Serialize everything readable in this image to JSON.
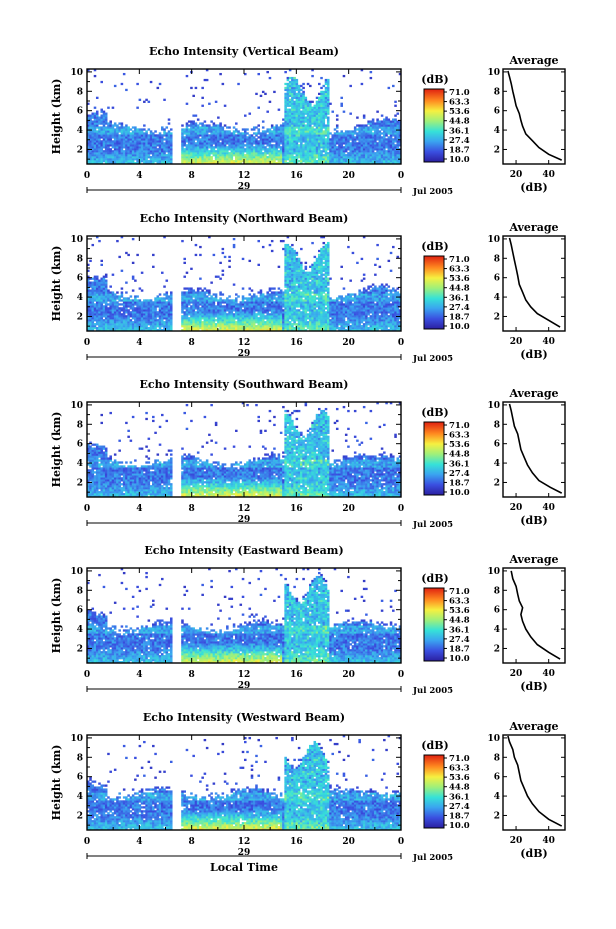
{
  "chart_data": [
    {
      "type": "heatmap",
      "title": "Echo Intensity (Vertical Beam)",
      "ylabel": "Height (km)",
      "ylim": [
        0.5,
        10.3
      ],
      "yticks": [
        "2",
        "4",
        "6",
        "8",
        "10"
      ],
      "xticks": [
        "0",
        "4",
        "8",
        "12",
        "16",
        "20",
        "0"
      ],
      "day_label": "29",
      "date_label": "Jul 2005",
      "xlabel": "",
      "colorbar": {
        "label": "(dB)",
        "ticks": [
          "71.0",
          "63.3",
          "53.6",
          "44.8",
          "36.1",
          "27.4",
          "18.7",
          "10.0"
        ]
      },
      "average": {
        "title": "Average",
        "xlabel": "(dB)",
        "xticks": [
          "20",
          "40"
        ],
        "yticks": [
          "2",
          "4",
          "6",
          "8",
          "10"
        ],
        "xlim": [
          12,
          50
        ],
        "ylim": [
          0.5,
          10.3
        ],
        "profile": [
          [
            48,
            0.9
          ],
          [
            40,
            1.5
          ],
          [
            34,
            2.2
          ],
          [
            30,
            2.9
          ],
          [
            26,
            3.6
          ],
          [
            24,
            4.4
          ],
          [
            23,
            5.0
          ],
          [
            22,
            5.7
          ],
          [
            20,
            6.5
          ],
          [
            19,
            7.3
          ],
          [
            18,
            8.0
          ],
          [
            17,
            8.8
          ],
          [
            16,
            9.5
          ],
          [
            15,
            10.1
          ]
        ]
      }
    },
    {
      "type": "heatmap",
      "title": "Echo Intensity (Northward Beam)",
      "ylabel": "Height (km)",
      "ylim": [
        0.5,
        10.3
      ],
      "yticks": [
        "2",
        "4",
        "6",
        "8",
        "10"
      ],
      "xticks": [
        "0",
        "4",
        "8",
        "12",
        "16",
        "20",
        "0"
      ],
      "day_label": "29",
      "date_label": "Jul 2005",
      "xlabel": "",
      "colorbar": {
        "label": "(dB)",
        "ticks": [
          "71.0",
          "63.3",
          "53.6",
          "44.8",
          "36.1",
          "27.4",
          "18.7",
          "10.0"
        ]
      },
      "average": {
        "title": "Average",
        "xlabel": "(dB)",
        "xticks": [
          "20",
          "40"
        ],
        "yticks": [
          "2",
          "4",
          "6",
          "8",
          "10"
        ],
        "xlim": [
          12,
          50
        ],
        "ylim": [
          0.5,
          10.3
        ],
        "profile": [
          [
            47,
            0.9
          ],
          [
            40,
            1.6
          ],
          [
            33,
            2.3
          ],
          [
            29,
            3.0
          ],
          [
            26,
            3.7
          ],
          [
            24,
            4.5
          ],
          [
            22,
            5.3
          ],
          [
            21,
            6.2
          ],
          [
            20,
            7.0
          ],
          [
            19,
            7.8
          ],
          [
            18,
            8.6
          ],
          [
            17,
            9.4
          ],
          [
            16,
            10.1
          ]
        ]
      }
    },
    {
      "type": "heatmap",
      "title": "Echo Intensity (Southward Beam)",
      "ylabel": "Height (km)",
      "ylim": [
        0.5,
        10.3
      ],
      "yticks": [
        "2",
        "4",
        "6",
        "8",
        "10"
      ],
      "xticks": [
        "0",
        "4",
        "8",
        "12",
        "16",
        "20",
        "0"
      ],
      "day_label": "29",
      "date_label": "Jul 2005",
      "xlabel": "",
      "colorbar": {
        "label": "(dB)",
        "ticks": [
          "71.0",
          "63.3",
          "53.6",
          "44.8",
          "36.1",
          "27.4",
          "18.7",
          "10.0"
        ]
      },
      "average": {
        "title": "Average",
        "xlabel": "(dB)",
        "xticks": [
          "20",
          "40"
        ],
        "yticks": [
          "2",
          "4",
          "6",
          "8",
          "10"
        ],
        "xlim": [
          12,
          50
        ],
        "ylim": [
          0.5,
          10.3
        ],
        "profile": [
          [
            48,
            0.9
          ],
          [
            41,
            1.5
          ],
          [
            34,
            2.2
          ],
          [
            30,
            3.0
          ],
          [
            27,
            3.8
          ],
          [
            25,
            4.6
          ],
          [
            23,
            5.4
          ],
          [
            22,
            6.2
          ],
          [
            21,
            7.0
          ],
          [
            19,
            7.8
          ],
          [
            18,
            8.6
          ],
          [
            17,
            9.4
          ],
          [
            16,
            10.1
          ]
        ]
      }
    },
    {
      "type": "heatmap",
      "title": "Echo Intensity (Eastward Beam)",
      "ylabel": "Height (km)",
      "ylim": [
        0.5,
        10.3
      ],
      "yticks": [
        "2",
        "4",
        "6",
        "8",
        "10"
      ],
      "xticks": [
        "0",
        "4",
        "8",
        "12",
        "16",
        "20",
        "0"
      ],
      "day_label": "29",
      "date_label": "Jul 2005",
      "xlabel": "",
      "colorbar": {
        "label": "(dB)",
        "ticks": [
          "71.0",
          "63.3",
          "53.6",
          "44.8",
          "36.1",
          "27.4",
          "18.7",
          "10.0"
        ]
      },
      "average": {
        "title": "Average",
        "xlabel": "(dB)",
        "xticks": [
          "20",
          "40"
        ],
        "yticks": [
          "2",
          "4",
          "6",
          "8",
          "10"
        ],
        "xlim": [
          12,
          50
        ],
        "ylim": [
          0.5,
          10.3
        ],
        "profile": [
          [
            47,
            0.9
          ],
          [
            40,
            1.6
          ],
          [
            33,
            2.4
          ],
          [
            29,
            3.2
          ],
          [
            26,
            4.0
          ],
          [
            24,
            4.8
          ],
          [
            23,
            5.5
          ],
          [
            24,
            6.2
          ],
          [
            22,
            6.9
          ],
          [
            21,
            7.6
          ],
          [
            20,
            8.4
          ],
          [
            18,
            9.2
          ],
          [
            17,
            10.0
          ]
        ]
      }
    },
    {
      "type": "heatmap",
      "title": "Echo Intensity (Westward Beam)",
      "ylabel": "Height (km)",
      "ylim": [
        0.5,
        10.3
      ],
      "yticks": [
        "2",
        "4",
        "6",
        "8",
        "10"
      ],
      "xticks": [
        "0",
        "4",
        "8",
        "12",
        "16",
        "20",
        "0"
      ],
      "day_label": "29",
      "date_label": "Jul 2005",
      "xlabel": "Local Time",
      "colorbar": {
        "label": "(dB)",
        "ticks": [
          "71.0",
          "63.3",
          "53.6",
          "44.8",
          "36.1",
          "27.4",
          "18.7",
          "10.0"
        ]
      },
      "average": {
        "title": "Average",
        "xlabel": "(dB)",
        "xticks": [
          "20",
          "40"
        ],
        "yticks": [
          "2",
          "4",
          "6",
          "8",
          "10"
        ],
        "xlim": [
          12,
          50
        ],
        "ylim": [
          0.5,
          10.3
        ],
        "profile": [
          [
            48,
            0.9
          ],
          [
            40,
            1.6
          ],
          [
            34,
            2.4
          ],
          [
            30,
            3.2
          ],
          [
            27,
            4.0
          ],
          [
            25,
            4.8
          ],
          [
            23,
            5.6
          ],
          [
            22,
            6.4
          ],
          [
            21,
            7.2
          ],
          [
            19,
            8.0
          ],
          [
            18,
            8.8
          ],
          [
            16,
            9.6
          ],
          [
            15,
            10.2
          ]
        ]
      }
    }
  ]
}
